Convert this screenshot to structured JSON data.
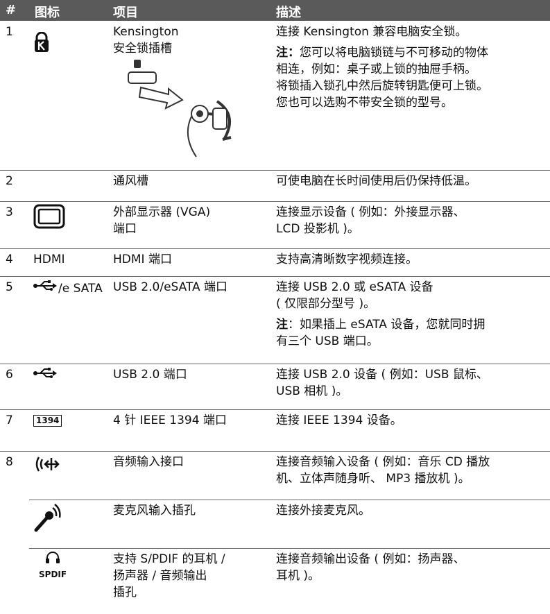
{
  "header": {
    "columns": [
      "#",
      "图标",
      "项目",
      "描述"
    ]
  },
  "rows": [
    {
      "number": "1",
      "item": [
        "Kensington",
        "安全锁插槽"
      ],
      "description": [
        "连接 Kensington 兼容电脑安全锁。"
      ],
      "note": {
        "label": "注：",
        "lines": [
          "您可以将电脑锁链与不可移动的物体",
          "相连，例如：桌子或上锁的抽屉手柄。",
          "将锁插入锁孔中然后旋转钥匙便可上锁。",
          "您也可以选购不带安全锁的型号。"
        ]
      }
    },
    {
      "number": "2",
      "item": [
        "通风槽"
      ],
      "description": [
        "可使电脑在长时间使用后仍保持低温。"
      ]
    },
    {
      "number": "3",
      "item": [
        "外部显示器 (VGA)",
        "端口"
      ],
      "description": [
        "连接显示设备 ( 例如：外接显示器、",
        "LCD 投影机 )。"
      ]
    },
    {
      "number": "4",
      "icon_label": "HDMI",
      "item": [
        "HDMI 端口"
      ],
      "description": [
        "支持高清晰数字视频连接。"
      ]
    },
    {
      "number": "5",
      "icon_label": "/e SATA",
      "item": [
        "USB 2.0/eSATA 端口"
      ],
      "description": [
        "连接 USB 2.0 或 eSATA 设备",
        "( 仅限部分型号 )。"
      ],
      "note": {
        "label": "注",
        "lines": [
          "：如果插上 eSATA 设备，您就同时拥",
          "有三个 USB 端口。"
        ]
      }
    },
    {
      "number": "6",
      "item": [
        "USB 2.0 端口"
      ],
      "description": [
        "连接 USB 2.0 设备 ( 例如：USB 鼠标、",
        "USB 相机 )。"
      ]
    },
    {
      "number": "7",
      "icon_label": "1394",
      "item": [
        "4 针 IEEE 1394 端口"
      ],
      "description": [
        "连接 IEEE 1394 设备。"
      ]
    },
    {
      "number": "8",
      "item": [
        "音频输入接口"
      ],
      "description": [
        "连接音频输入设备 ( 例如：音乐 CD 播放",
        "机、立体声随身听、 MP3 播放机 )。"
      ]
    },
    {
      "item": [
        "麦克风输入插孔"
      ],
      "description": [
        "连接外接麦克风。"
      ]
    },
    {
      "icon_label": "SPDIF",
      "item": [
        "支持 S/PDIF 的耳机 /",
        "扬声器 / 音频输出",
        "插孔"
      ],
      "description": [
        "连接音频输出设备 ( 例如：扬声器、",
        "耳机 )。"
      ]
    }
  ]
}
